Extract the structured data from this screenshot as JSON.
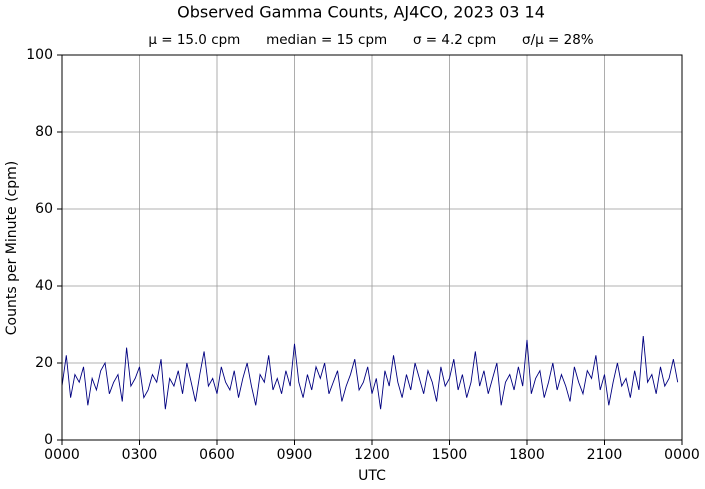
{
  "chart_data": {
    "type": "line",
    "title": "Observed Gamma Counts, AJ4CO, 2023 03 14",
    "subtitle": "μ = 15.0 cpm      median = 15 cpm      σ = 4.2 cpm      σ/μ = 28%",
    "x_label": "UTC",
    "y_label": "Counts per Minute (cpm)",
    "xlim": [
      0,
      1440
    ],
    "ylim": [
      0,
      100
    ],
    "xticks": [
      {
        "value": 0,
        "label": "0000"
      },
      {
        "value": 180,
        "label": "0300"
      },
      {
        "value": 360,
        "label": "0600"
      },
      {
        "value": 540,
        "label": "0900"
      },
      {
        "value": 720,
        "label": "1200"
      },
      {
        "value": 900,
        "label": "1500"
      },
      {
        "value": 1080,
        "label": "1800"
      },
      {
        "value": 1260,
        "label": "2100"
      },
      {
        "value": 1440,
        "label": "0000"
      }
    ],
    "yticks": [
      0,
      20,
      40,
      60,
      80,
      100
    ],
    "grid": true,
    "series": [
      {
        "color": "#000080",
        "x": [
          0,
          10,
          20,
          30,
          40,
          50,
          60,
          70,
          80,
          90,
          100,
          110,
          120,
          130,
          140,
          150,
          160,
          170,
          180,
          190,
          200,
          210,
          220,
          230,
          240,
          250,
          260,
          270,
          280,
          290,
          300,
          310,
          320,
          330,
          340,
          350,
          360,
          370,
          380,
          390,
          400,
          410,
          420,
          430,
          440,
          450,
          460,
          470,
          480,
          490,
          500,
          510,
          520,
          530,
          540,
          550,
          560,
          570,
          580,
          590,
          600,
          610,
          620,
          630,
          640,
          650,
          660,
          670,
          680,
          690,
          700,
          710,
          720,
          730,
          740,
          750,
          760,
          770,
          780,
          790,
          800,
          810,
          820,
          830,
          840,
          850,
          860,
          870,
          880,
          890,
          900,
          910,
          920,
          930,
          940,
          950,
          960,
          970,
          980,
          990,
          1000,
          1010,
          1020,
          1030,
          1040,
          1050,
          1060,
          1070,
          1080,
          1090,
          1100,
          1110,
          1120,
          1130,
          1140,
          1150,
          1160,
          1170,
          1180,
          1190,
          1200,
          1210,
          1220,
          1230,
          1240,
          1250,
          1260,
          1270,
          1280,
          1290,
          1300,
          1310,
          1320,
          1330,
          1340,
          1350,
          1360,
          1370,
          1380,
          1390,
          1400,
          1410,
          1420,
          1430
        ],
        "values": [
          14,
          22,
          11,
          17,
          15,
          19,
          9,
          16,
          13,
          18,
          20,
          12,
          15,
          17,
          10,
          24,
          14,
          16,
          19,
          11,
          13,
          17,
          15,
          21,
          8,
          16,
          14,
          18,
          12,
          20,
          15,
          10,
          17,
          23,
          14,
          16,
          12,
          19,
          15,
          13,
          18,
          11,
          16,
          20,
          14,
          9,
          17,
          15,
          22,
          13,
          16,
          12,
          18,
          14,
          25,
          15,
          11,
          17,
          13,
          19,
          16,
          20,
          12,
          15,
          18,
          10,
          14,
          17,
          21,
          13,
          15,
          19,
          12,
          16,
          8,
          18,
          14,
          22,
          15,
          11,
          17,
          13,
          20,
          16,
          12,
          18,
          15,
          10,
          19,
          14,
          16,
          21,
          13,
          17,
          11,
          15,
          23,
          14,
          18,
          12,
          16,
          20,
          9,
          15,
          17,
          13,
          19,
          14,
          26,
          12,
          16,
          18,
          11,
          15,
          20,
          13,
          17,
          14,
          10,
          19,
          15,
          12,
          18,
          16,
          22,
          13,
          17,
          9,
          15,
          20,
          14,
          16,
          11,
          18,
          13,
          27,
          15,
          17,
          12,
          19,
          14,
          16,
          21,
          15
        ]
      }
    ]
  }
}
